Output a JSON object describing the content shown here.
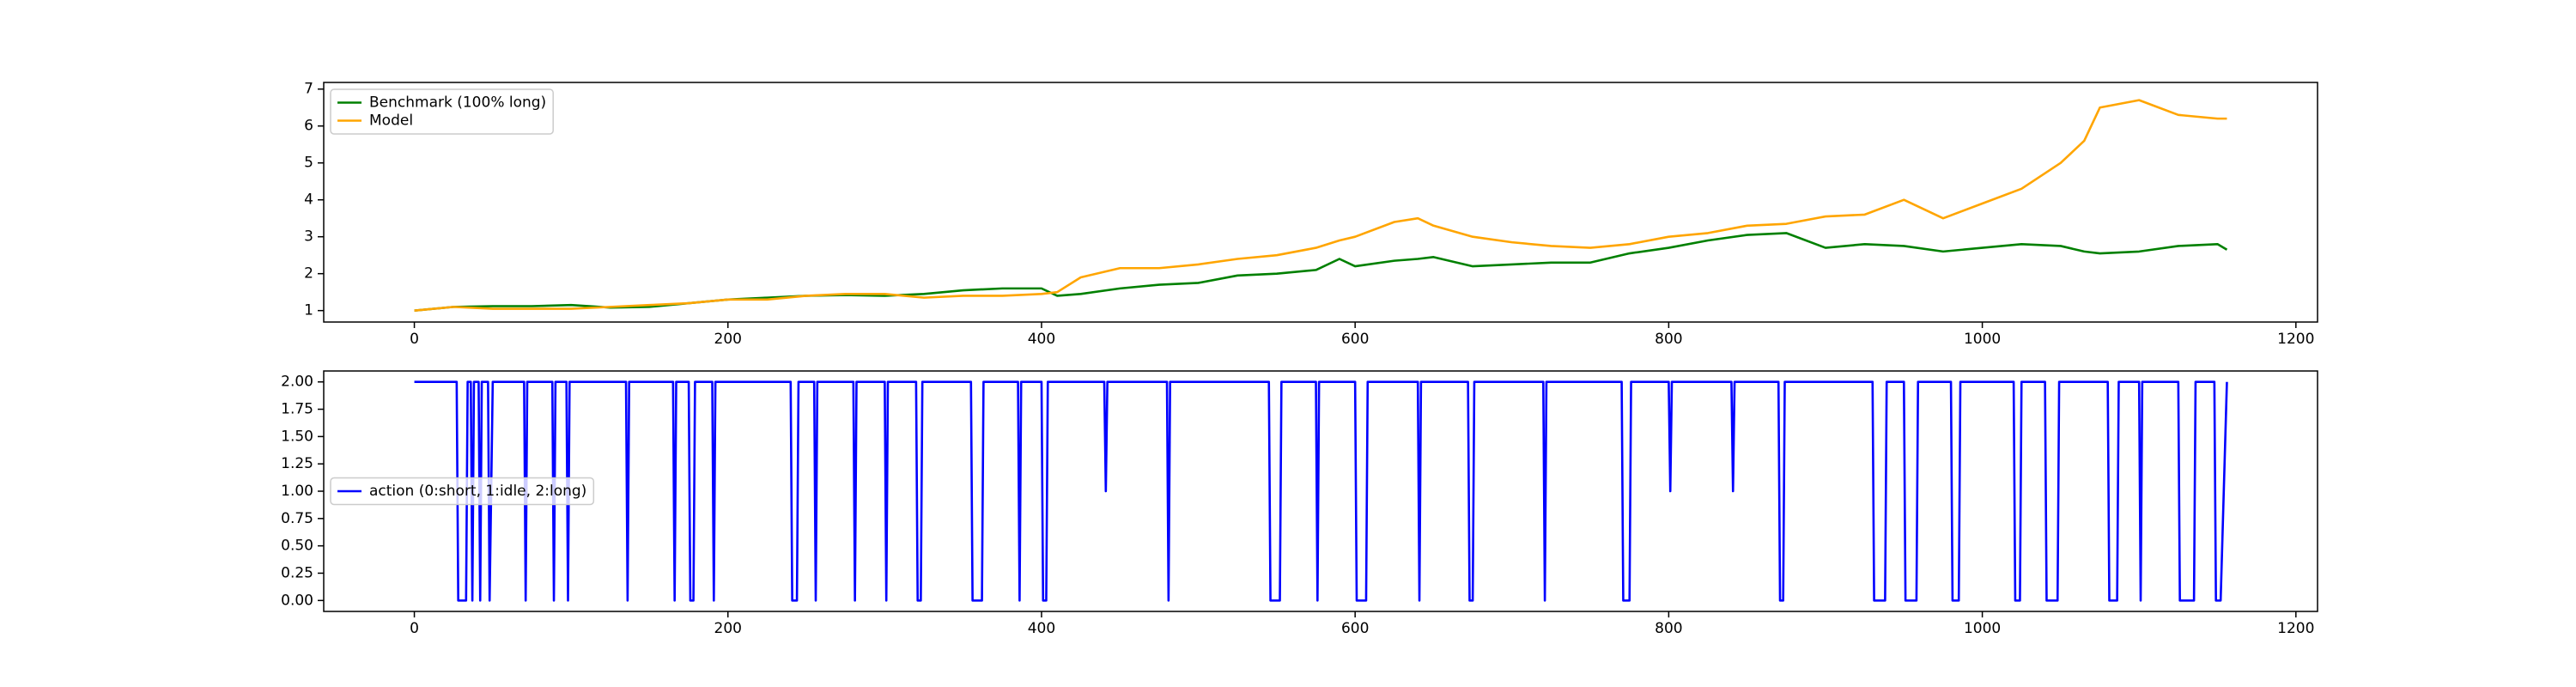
{
  "chart_data": [
    {
      "type": "line",
      "legend": "upper left",
      "xlim": [
        -57.8,
        1213.8
      ],
      "xticks": [
        0,
        200,
        400,
        600,
        800,
        1000,
        1200
      ],
      "ylim": [
        0.69,
        7.18
      ],
      "yticks": [
        1,
        2,
        3,
        4,
        5,
        6,
        7
      ],
      "x": [
        0,
        25,
        50,
        75,
        100,
        125,
        150,
        175,
        200,
        225,
        250,
        275,
        300,
        325,
        350,
        375,
        400,
        410,
        425,
        450,
        475,
        500,
        525,
        550,
        575,
        590,
        600,
        625,
        640,
        650,
        675,
        700,
        725,
        750,
        775,
        800,
        825,
        850,
        875,
        900,
        925,
        950,
        975,
        1000,
        1025,
        1050,
        1065,
        1075,
        1100,
        1125,
        1150,
        1156
      ],
      "series": [
        {
          "name": "Benchmark (100% long)",
          "color": "#008000",
          "values": [
            1.0,
            1.1,
            1.12,
            1.12,
            1.15,
            1.08,
            1.1,
            1.2,
            1.3,
            1.35,
            1.4,
            1.42,
            1.4,
            1.45,
            1.55,
            1.6,
            1.6,
            1.4,
            1.45,
            1.6,
            1.7,
            1.75,
            1.95,
            2.0,
            2.1,
            2.4,
            2.2,
            2.35,
            2.4,
            2.45,
            2.2,
            2.25,
            2.3,
            2.3,
            2.55,
            2.7,
            2.9,
            3.05,
            3.1,
            2.7,
            2.8,
            2.75,
            2.6,
            2.7,
            2.8,
            2.75,
            2.6,
            2.55,
            2.6,
            2.75,
            2.8,
            2.65
          ]
        },
        {
          "name": "Model",
          "color": "#ffa500",
          "values": [
            1.0,
            1.1,
            1.05,
            1.05,
            1.05,
            1.1,
            1.15,
            1.2,
            1.3,
            1.3,
            1.4,
            1.45,
            1.45,
            1.35,
            1.4,
            1.4,
            1.45,
            1.5,
            1.9,
            2.15,
            2.15,
            2.25,
            2.4,
            2.5,
            2.7,
            2.9,
            3.0,
            3.4,
            3.5,
            3.3,
            3.0,
            2.85,
            2.75,
            2.7,
            2.8,
            3.0,
            3.1,
            3.3,
            3.35,
            3.55,
            3.6,
            4.0,
            3.5,
            3.9,
            4.3,
            5.0,
            5.6,
            6.5,
            6.7,
            6.3,
            6.2,
            6.2
          ]
        }
      ]
    },
    {
      "type": "line",
      "legend": "center left",
      "xlim": [
        -57.8,
        1213.8
      ],
      "xticks": [
        0,
        200,
        400,
        600,
        800,
        1000,
        1200
      ],
      "ylim": [
        -0.1,
        2.1
      ],
      "yticks": [
        {
          "value": 0,
          "label": "0.00"
        },
        {
          "value": 0.25,
          "label": "0.25"
        },
        {
          "value": 0.5,
          "label": "0.50"
        },
        {
          "value": 0.75,
          "label": "0.75"
        },
        {
          "value": 1,
          "label": "1.00"
        },
        {
          "value": 1.25,
          "label": "1.25"
        },
        {
          "value": 1.5,
          "label": "1.50"
        },
        {
          "value": 1.75,
          "label": "1.75"
        },
        {
          "value": 2,
          "label": "2.00"
        }
      ],
      "x": [
        0,
        27,
        28,
        33,
        34,
        36,
        37,
        38,
        41,
        42,
        43,
        47,
        48,
        50,
        70,
        71,
        72,
        88,
        89,
        90,
        97,
        98,
        99,
        135,
        136,
        137,
        165,
        166,
        167,
        175,
        176,
        178,
        179,
        190,
        191,
        192,
        240,
        241,
        244,
        245,
        255,
        256,
        257,
        280,
        281,
        282,
        300,
        301,
        302,
        320,
        321,
        323,
        324,
        355,
        356,
        362,
        363,
        385,
        386,
        387,
        400,
        401,
        403,
        404,
        440,
        441,
        442,
        480,
        481,
        482,
        545,
        546,
        552,
        553,
        575,
        576,
        577,
        600,
        601,
        607,
        608,
        640,
        641,
        642,
        672,
        673,
        675,
        676,
        720,
        721,
        722,
        770,
        771,
        775,
        776,
        800,
        801,
        802,
        840,
        841,
        842,
        870,
        871,
        873,
        874,
        930,
        931,
        938,
        939,
        950,
        951,
        958,
        959,
        980,
        981,
        985,
        986,
        1020,
        1021,
        1024,
        1025,
        1040,
        1041,
        1048,
        1049,
        1080,
        1081,
        1086,
        1087,
        1100,
        1101,
        1102,
        1125,
        1126,
        1135,
        1136,
        1148,
        1149,
        1152,
        1156
      ],
      "series": [
        {
          "name": "action (0:short, 1:idle, 2:long)",
          "color": "#0000ff",
          "values": [
            2,
            2,
            0,
            0,
            2,
            2,
            0,
            2,
            2,
            0,
            2,
            2,
            0,
            2,
            2,
            0,
            2,
            2,
            0,
            2,
            2,
            0,
            2,
            2,
            0,
            2,
            2,
            0,
            2,
            2,
            0,
            0,
            2,
            2,
            0,
            2,
            2,
            0,
            0,
            2,
            2,
            0,
            2,
            2,
            0,
            2,
            2,
            0,
            2,
            2,
            0,
            0,
            2,
            2,
            0,
            0,
            2,
            2,
            0,
            2,
            2,
            0,
            0,
            2,
            2,
            1,
            2,
            2,
            0,
            2,
            2,
            0,
            0,
            2,
            2,
            0,
            2,
            2,
            0,
            0,
            2,
            2,
            0,
            2,
            2,
            0,
            0,
            2,
            2,
            0,
            2,
            2,
            0,
            0,
            2,
            2,
            1,
            2,
            2,
            1,
            2,
            2,
            0,
            0,
            2,
            2,
            0,
            0,
            2,
            2,
            0,
            0,
            2,
            2,
            0,
            0,
            2,
            2,
            0,
            0,
            2,
            2,
            0,
            0,
            2,
            2,
            0,
            0,
            2,
            2,
            0,
            2,
            2,
            0,
            0,
            2,
            2,
            0,
            0,
            2
          ]
        }
      ]
    }
  ]
}
